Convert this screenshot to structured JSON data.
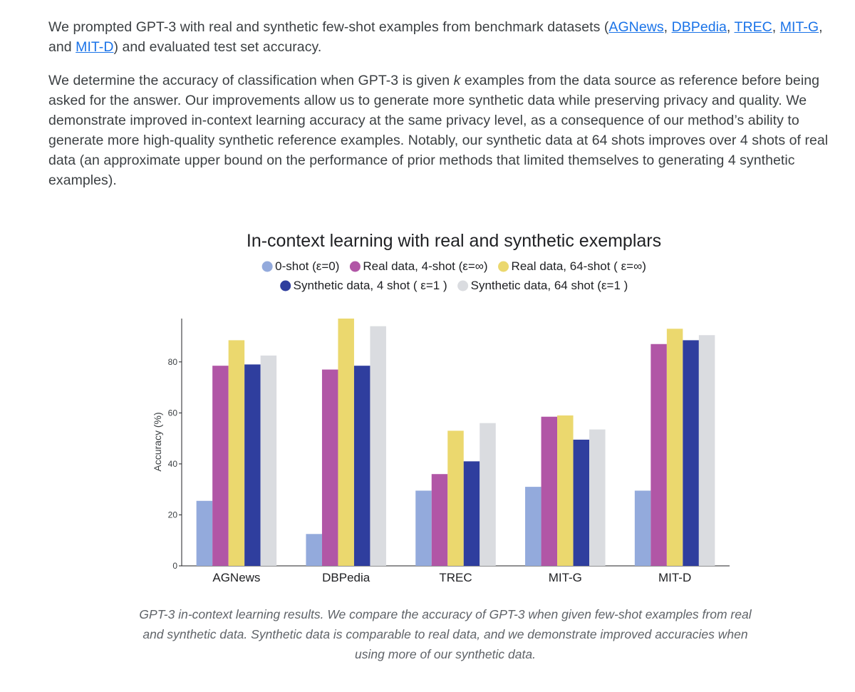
{
  "paragraph1": {
    "before": "We prompted GPT-3 with real and synthetic few-shot examples from benchmark datasets (",
    "links": [
      "AGNews",
      "DBPedia",
      "TREC",
      "MIT-G",
      "MIT-D"
    ],
    "sep_comma": ", ",
    "sep_and": ", and ",
    "after": ") and evaluated test set accuracy."
  },
  "paragraph2": {
    "before": "We determine the accuracy of classification when GPT-3 is given ",
    "k": "k",
    "after": " examples from the data source as reference before being asked for the answer. Our improvements allow us to generate more synthetic data while preserving privacy and quality. We demonstrate improved in-context learning accuracy at the same privacy level, as a consequence of our method’s ability to generate more high-quality synthetic reference examples. Notably, our synthetic data at 64 shots improves over 4 shots of real data (an approximate upper bound on the performance of prior methods that limited themselves to generating 4 synthetic examples)."
  },
  "chart_data": {
    "type": "bar",
    "title": "In-context learning with real and synthetic exemplars",
    "xlabel": "",
    "ylabel": "Accuracy (%)",
    "ylim": [
      0,
      97
    ],
    "yticks": [
      0,
      20,
      40,
      60,
      80
    ],
    "grid": false,
    "legend_position": "top",
    "categories": [
      "AGNews",
      "DBPedia",
      "TREC",
      "MIT-G",
      "MIT-D"
    ],
    "series": [
      {
        "name": "0-shot (ε=0)",
        "color": "#93aadc",
        "values": [
          25.5,
          12.5,
          29.5,
          31,
          29.5
        ]
      },
      {
        "name": "Real data, 4-shot (ε=∞)",
        "color": "#b156a6",
        "values": [
          78.5,
          77,
          36,
          58.5,
          87
        ]
      },
      {
        "name": "Real data, 64-shot ( ε=∞)",
        "color": "#ebd86e",
        "values": [
          88.5,
          97,
          53,
          59,
          93
        ]
      },
      {
        "name": "Synthetic data, 4  shot ( ε=1 )",
        "color": "#2f3e9e",
        "values": [
          79,
          78.5,
          41,
          49.5,
          88.5
        ]
      },
      {
        "name": "Synthetic data, 64  shot (ε=1 )",
        "color": "#dadce0",
        "values": [
          82.5,
          94,
          56,
          53.5,
          90.5
        ]
      }
    ]
  },
  "caption": "GPT-3 in-context learning results. We compare the accuracy of GPT-3 when given few-shot examples from real and synthetic data. Synthetic data is comparable to real data, and we demonstrate improved accuracies when using more of our synthetic data."
}
